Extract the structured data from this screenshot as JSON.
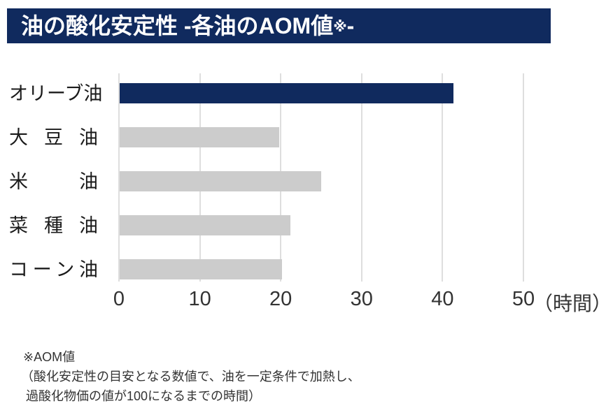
{
  "header": {
    "title_main": "油の酸化安定性 -各油のAOM値",
    "title_note": "※",
    "title_dash": "-",
    "bg_color": "#102a5e",
    "text_color": "#ffffff"
  },
  "chart_data": {
    "type": "bar",
    "orientation": "horizontal",
    "title": "油の酸化安定性 -各油のAOM値※-",
    "categories": [
      "オリーブ油",
      "大豆油",
      "米油",
      "菜種油",
      "コーン油"
    ],
    "values": [
      41.3,
      19.7,
      24.9,
      21.1,
      20.1
    ],
    "xlim": [
      0,
      50
    ],
    "x_ticks": [
      0,
      10,
      20,
      30,
      40,
      50
    ],
    "x_unit": "（時間）",
    "grid": true,
    "legend": false,
    "highlight_index": 0,
    "colors": {
      "highlight_bar": "#102a5e",
      "bar": "#cccccc",
      "gridline": "#dedede",
      "tick_text": "#333333",
      "label_text": "#1a1a1a"
    }
  },
  "footnote": {
    "lines": [
      "※AOM値",
      "（酸化安定性の目安となる数値で、油を一定条件で加熱し、",
      "過酸化物価の値が100になるまでの時間）"
    ]
  }
}
